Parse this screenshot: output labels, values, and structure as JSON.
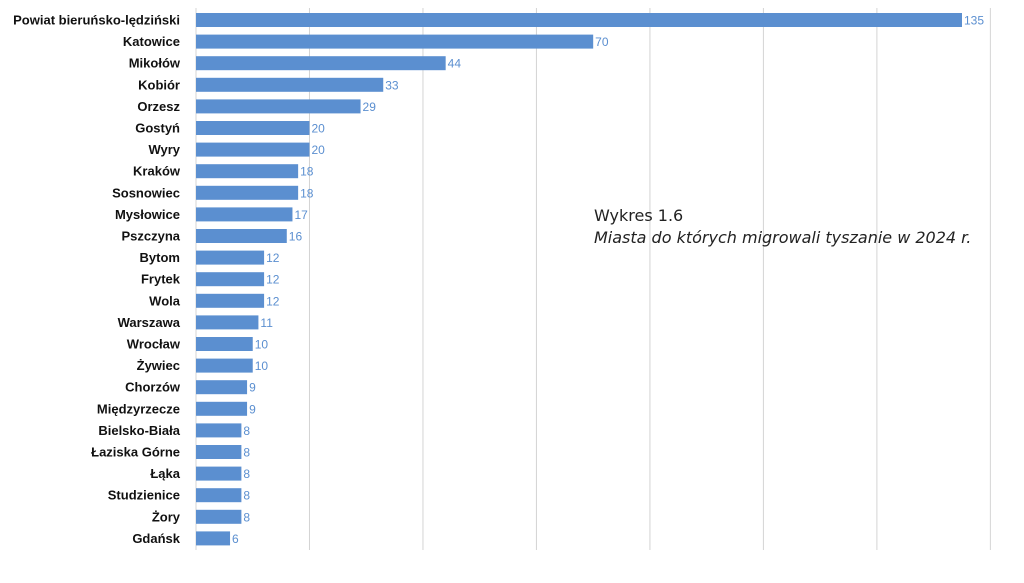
{
  "caption": {
    "title": "Wykres 1.6",
    "subtitle": "Miasta do których migrowali tyszanie w 2024 r."
  },
  "colors": {
    "bar": "#5b8fd0",
    "value_label": "#5b8fd0",
    "grid": "#d4d4d4",
    "category_label": "#111111"
  },
  "chart_data": {
    "type": "bar",
    "orientation": "horizontal",
    "categories": [
      "Powiat bieruńsko-lędziński",
      "Katowice",
      "Mikołów",
      "Kobiór",
      "Orzesz",
      "Gostyń",
      "Wyry",
      "Kraków",
      "Sosnowiec",
      "Mysłowice",
      "Pszczyna",
      "Bytom",
      "Frytek",
      "Wola",
      "Warszawa",
      "Wrocław",
      "Żywiec",
      "Chorzów",
      "Międzyrzecze",
      "Bielsko-Biała",
      "Łaziska Górne",
      "Łąka",
      "Studzienice",
      "Żory",
      "Gdańsk"
    ],
    "values": [
      135,
      70,
      44,
      33,
      29,
      20,
      20,
      18,
      18,
      17,
      16,
      12,
      12,
      12,
      11,
      10,
      10,
      9,
      9,
      8,
      8,
      8,
      8,
      8,
      6
    ],
    "value_labels": [
      "135",
      "70",
      "44",
      "33",
      "29",
      "20",
      "20",
      "18",
      "18",
      "17",
      "16",
      "12",
      "12",
      "12",
      "11",
      "10",
      "10",
      "9",
      "9",
      "8",
      "8",
      "8",
      "8",
      "8",
      "6"
    ],
    "xlim": [
      0,
      140
    ],
    "grid_step": 20,
    "grid": true,
    "data_labels": true,
    "legend": "none"
  }
}
